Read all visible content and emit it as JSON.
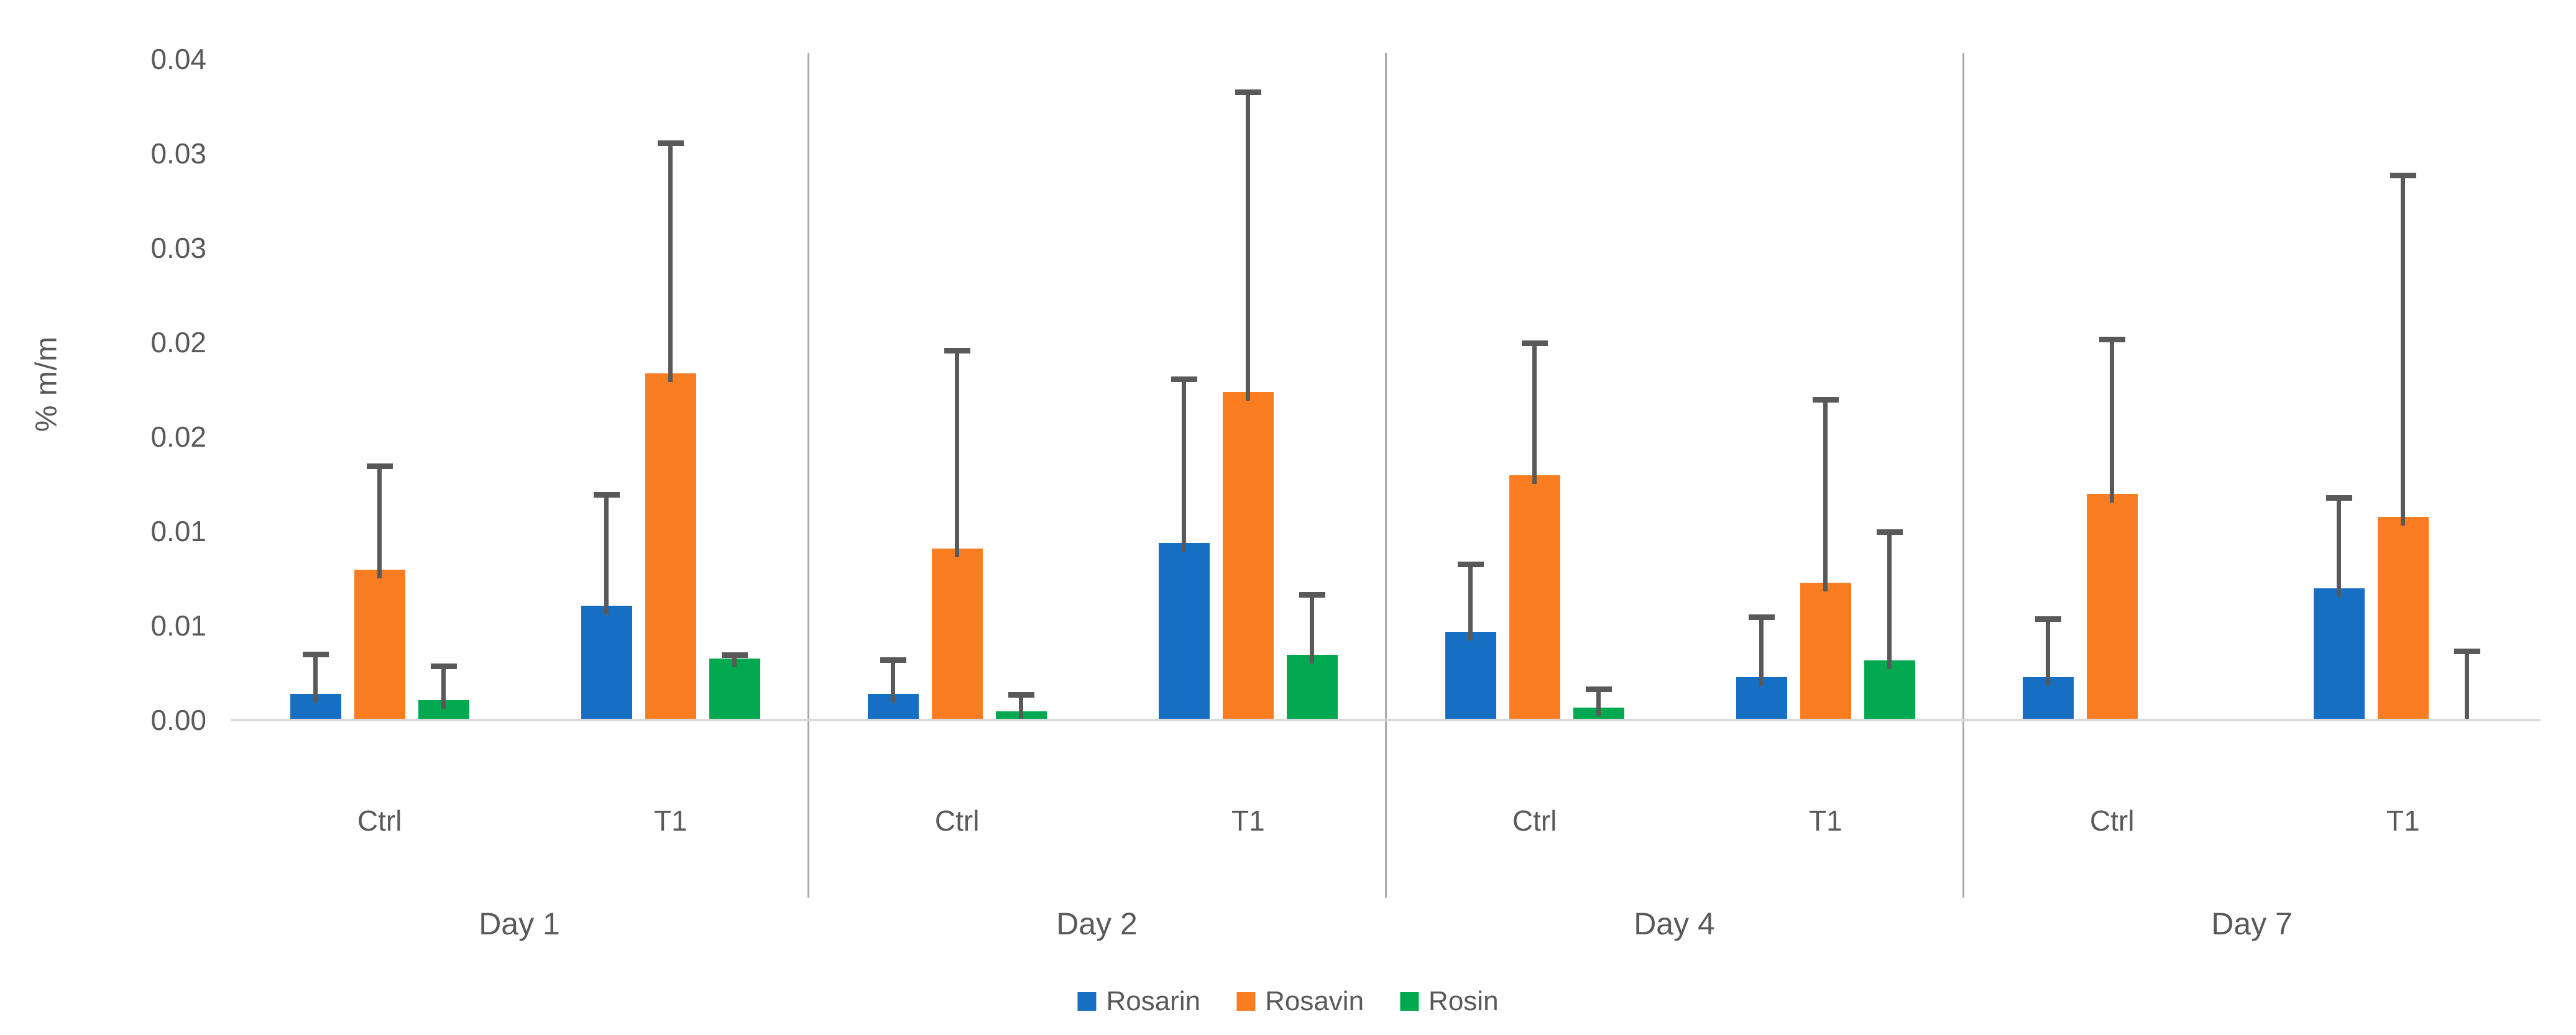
{
  "chart_data": {
    "type": "bar",
    "title": "",
    "ylabel": "% m/m",
    "xlabel": "",
    "ylim": [
      0,
      0.035
    ],
    "ytick_step": 0.005,
    "ytick_values": [
      0,
      0.005,
      0.01,
      0.015,
      0.02,
      0.025,
      0.03,
      0.035
    ],
    "ytick_labels": [
      "0.00",
      "0.01",
      "0.01",
      "0.02",
      "0.02",
      "0.03",
      "0.03",
      "0.04"
    ],
    "grid": false,
    "legend_position": "bottom",
    "series": [
      {
        "name": "Rosarin",
        "color": "#176fc4"
      },
      {
        "name": "Rosavin",
        "color": "#fb7d21"
      },
      {
        "name": "Rosin",
        "color": "#00a94f"
      }
    ],
    "error_bar_color": "#595959",
    "panels": [
      {
        "label": "Day 1",
        "groups": [
          {
            "label": "Ctrl",
            "values": [
              0.0013,
              0.0079,
              0.001
            ],
            "errors": [
              0.0021,
              0.0055,
              0.0018
            ]
          },
          {
            "label": "T1",
            "values": [
              0.006,
              0.0183,
              0.0032
            ],
            "errors": [
              0.0059,
              0.0122,
              0.0002
            ]
          }
        ]
      },
      {
        "label": "Day 2",
        "groups": [
          {
            "label": "Ctrl",
            "values": [
              0.0013,
              0.009,
              0.0004
            ],
            "errors": [
              0.0018,
              0.0105,
              0.0009
            ]
          },
          {
            "label": "T1",
            "values": [
              0.0093,
              0.0173,
              0.0034
            ],
            "errors": [
              0.0087,
              0.0159,
              0.0032
            ]
          }
        ]
      },
      {
        "label": "Day 4",
        "groups": [
          {
            "label": "Ctrl",
            "values": [
              0.0046,
              0.0129,
              0.0006
            ],
            "errors": [
              0.0036,
              0.007,
              0.001
            ]
          },
          {
            "label": "T1",
            "values": [
              0.0022,
              0.0072,
              0.0031
            ],
            "errors": [
              0.0032,
              0.0097,
              0.0068
            ]
          }
        ]
      },
      {
        "label": "Day 7",
        "groups": [
          {
            "label": "Ctrl",
            "values": [
              0.0022,
              0.0119,
              null
            ],
            "errors": [
              0.0031,
              0.0082,
              null
            ]
          },
          {
            "label": "T1",
            "values": [
              0.0069,
              0.0107,
              0
            ],
            "errors": [
              0.0048,
              0.0181,
              0.0036
            ]
          }
        ]
      }
    ]
  },
  "legend": {
    "items": [
      "Rosarin",
      "Rosavin",
      "Rosin"
    ]
  }
}
